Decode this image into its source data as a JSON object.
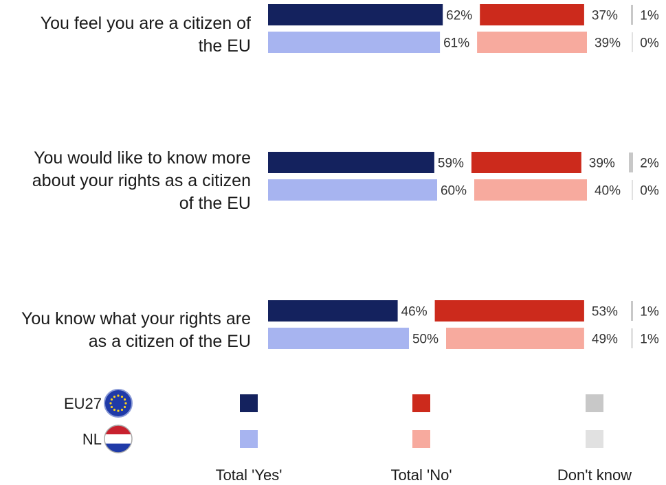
{
  "chart_data": {
    "type": "bar",
    "stacked": true,
    "orientation": "horizontal",
    "value_unit": "%",
    "categories": [
      "You feel you are a citizen of the EU",
      "You would like to know more about your rights as a citizen of the EU",
      "You know what your rights are as a citizen of the EU"
    ],
    "category_lines": [
      [
        "You feel you are a citizen of",
        "the EU"
      ],
      [
        "You would like to know more",
        "about your rights as a citizen",
        "of the EU"
      ],
      [
        "You know what your rights are",
        "as a citizen of the EU"
      ]
    ],
    "groups": [
      {
        "name": "EU27",
        "icon": "eu-flag-icon",
        "series": [
          {
            "name": "Total 'Yes'",
            "color": "#14225e",
            "values": [
              62,
              59,
              46
            ]
          },
          {
            "name": "Total 'No'",
            "color": "#cc2a1c",
            "values": [
              37,
              39,
              53
            ]
          },
          {
            "name": "Don't know",
            "color": "#c8c8c8",
            "values": [
              1,
              2,
              1
            ]
          }
        ]
      },
      {
        "name": "NL",
        "icon": "netherlands-flag-icon",
        "series": [
          {
            "name": "Total 'Yes'",
            "color": "#a7b4f0",
            "values": [
              61,
              60,
              50
            ]
          },
          {
            "name": "Total 'No'",
            "color": "#f7aa9e",
            "values": [
              39,
              40,
              49
            ]
          },
          {
            "name": "Don't know",
            "color": "#e1e1e1",
            "values": [
              0,
              0,
              1
            ]
          }
        ]
      }
    ],
    "legend": {
      "placement": "bottom",
      "rows": [
        "EU27",
        "NL"
      ],
      "columns": [
        "Total 'Yes'",
        "Total 'No'",
        "Don't know"
      ]
    },
    "grid": false
  }
}
